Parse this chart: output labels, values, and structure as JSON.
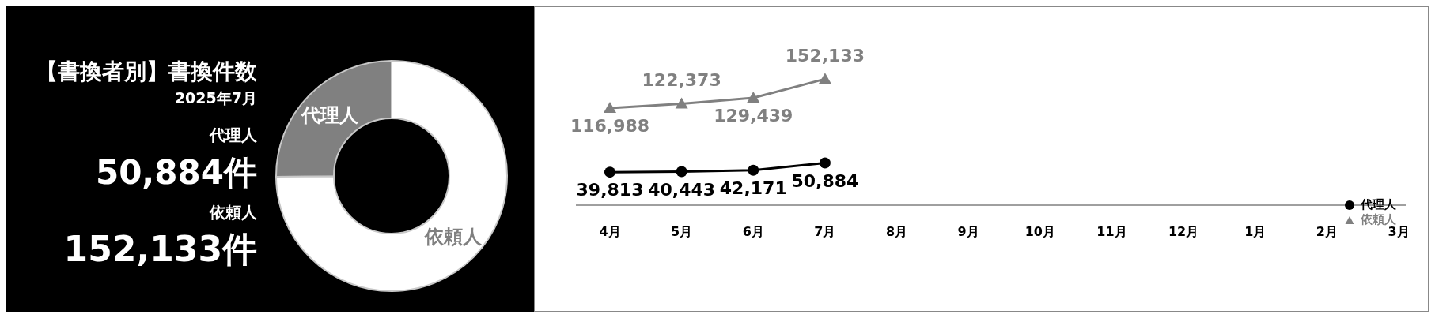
{
  "chart_data": [
    {
      "type": "donut",
      "title": "【書換者別】書換件数",
      "subtitle": "2025年7月",
      "categories": [
        "代理人",
        "依頼人"
      ],
      "values": [
        25.1,
        74.9
      ],
      "colors": [
        "#808080",
        "#ffffff"
      ],
      "annotations": [
        "代理人",
        "50,884件",
        "依頼人",
        "152,133件"
      ]
    },
    {
      "type": "line",
      "categories": [
        "4月",
        "5月",
        "6月",
        "7月",
        "8月",
        "9月",
        "10月",
        "11月",
        "12月",
        "1月",
        "2月",
        "3月"
      ],
      "series": [
        {
          "name": "代理人",
          "color": "#000000",
          "marker": "circle",
          "values": [
            39813,
            40443,
            42171,
            50884,
            null,
            null,
            null,
            null,
            null,
            null,
            null,
            null
          ],
          "value_labels": [
            "39,813",
            "40,443",
            "42,171",
            "50,884",
            null,
            null,
            null,
            null,
            null,
            null,
            null,
            null
          ]
        },
        {
          "name": "依頼人",
          "color": "#808080",
          "marker": "triangle",
          "values": [
            116988,
            122373,
            129439,
            152133,
            null,
            null,
            null,
            null,
            null,
            null,
            null,
            null
          ],
          "value_labels": [
            "116,988",
            "122,373",
            "129,439",
            "152,133",
            null,
            null,
            null,
            null,
            null,
            null,
            null,
            null
          ]
        }
      ],
      "legend": "bottom right",
      "grid": false
    }
  ]
}
